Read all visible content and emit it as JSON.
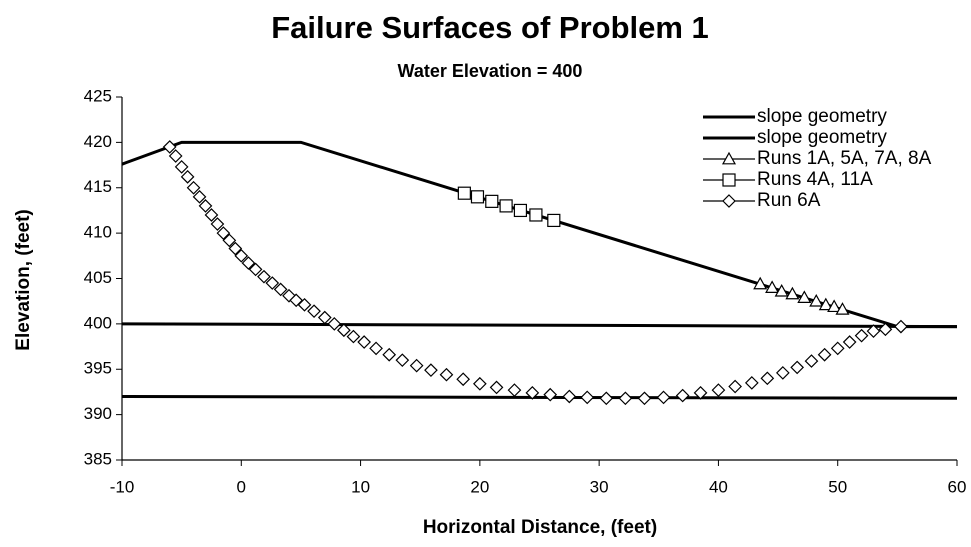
{
  "chart_data": {
    "type": "scatter",
    "title": "Failure Surfaces of Problem 1",
    "subtitle": "Water Elevation = 400",
    "x_label": "Horizontal Distance, (feet)",
    "y_label": "Elevation, (feet)",
    "xlim": [
      -10,
      60
    ],
    "ylim": [
      385,
      425
    ],
    "xticks": [
      -10,
      0,
      10,
      20,
      30,
      40,
      50,
      60
    ],
    "yticks": [
      385,
      390,
      395,
      400,
      405,
      410,
      415,
      420,
      425
    ],
    "legend": "upper right",
    "series": [
      {
        "name": "slope geometry",
        "color": "#000000",
        "marker": "none",
        "x": [
          -10,
          -5,
          5,
          55,
          60
        ],
        "values": [
          417.6,
          420,
          420,
          399.7,
          399.7
        ]
      },
      {
        "name": "slope geometry",
        "color": "#000000",
        "marker": "none",
        "x": [
          -10,
          60,
          null,
          -10,
          60
        ],
        "values": [
          400,
          399.7,
          null,
          392,
          391.8
        ]
      },
      {
        "name": "Runs 1A, 5A, 7A, 8A",
        "color": "#000000",
        "marker": "triangle",
        "x": [
          43.5,
          44.5,
          45.3,
          46.2,
          47.2,
          48.2,
          49,
          49.7,
          50.4
        ],
        "values": [
          404.4,
          404,
          403.6,
          403.3,
          402.9,
          402.5,
          402.1,
          401.9,
          401.6
        ]
      },
      {
        "name": "Runs 4A, 11A",
        "color": "#000000",
        "marker": "square",
        "x": [
          18.7,
          19.8,
          21,
          22.2,
          23.4,
          24.7,
          26.2
        ],
        "values": [
          414.4,
          414,
          413.5,
          413,
          412.5,
          412,
          411.4
        ]
      },
      {
        "name": "Run 6A",
        "color": "#000000",
        "marker": "diamond",
        "x": [
          -6,
          -5.5,
          -5,
          -4.5,
          -4,
          -3.5,
          -3,
          -2.5,
          -2,
          -1.5,
          -1,
          -0.5,
          0,
          0.6,
          1.2,
          1.9,
          2.6,
          3.3,
          4,
          4.6,
          5.3,
          6.1,
          7,
          7.8,
          8.6,
          9.4,
          10.3,
          11.3,
          12.4,
          13.5,
          14.7,
          15.9,
          17.2,
          18.6,
          20,
          21.4,
          22.9,
          24.4,
          25.9,
          27.5,
          29,
          30.6,
          32.2,
          33.8,
          35.4,
          37,
          38.5,
          40,
          41.4,
          42.8,
          44.1,
          45.4,
          46.6,
          47.8,
          48.9,
          50,
          51,
          52,
          53,
          54,
          55.3
        ],
        "values": [
          419.5,
          418.5,
          417.3,
          416.2,
          415,
          414,
          413,
          412,
          411,
          410,
          409.2,
          408.3,
          407.5,
          406.7,
          406,
          405.2,
          404.5,
          403.8,
          403.1,
          402.6,
          402.1,
          401.4,
          400.7,
          400,
          399.3,
          398.6,
          398,
          397.3,
          396.6,
          396,
          395.4,
          394.9,
          394.4,
          393.9,
          393.4,
          393,
          392.7,
          392.4,
          392.2,
          392,
          391.9,
          391.8,
          391.8,
          391.8,
          391.9,
          392.1,
          392.4,
          392.7,
          393.1,
          393.5,
          394,
          394.6,
          395.2,
          395.9,
          396.6,
          397.3,
          398,
          398.7,
          399.2,
          399.4,
          399.7
        ]
      }
    ]
  }
}
